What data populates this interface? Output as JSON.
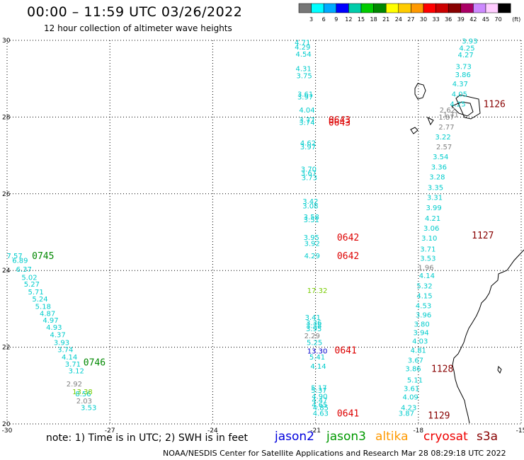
{
  "header": {
    "title": "00:00 – 11:59 UTC 03/26/2022",
    "subtitle": "12 hour collection of altimeter wave heights"
  },
  "colorbar": {
    "labels": [
      "3",
      "6",
      "9",
      "12",
      "15",
      "18",
      "21",
      "24",
      "27",
      "30",
      "33",
      "36",
      "39",
      "42",
      "45",
      "70"
    ],
    "unit": "(ft)",
    "colors": [
      "#777777",
      "#00ffff",
      "#00aaff",
      "#0000ff",
      "#00ccaa",
      "#00cc00",
      "#008800",
      "#ffff00",
      "#ffcc00",
      "#ff9900",
      "#ff0000",
      "#cc0000",
      "#880000",
      "#aa0066",
      "#cc88ff",
      "#ffccff",
      "#000000"
    ]
  },
  "footer": {
    "note": "note: 1) Time is in UTC; 2) SWH is in feet",
    "credit": "NOAA/NESDIS Center for Satellite Applications and Research   Mar 28 08:29:18 UTC 2022",
    "satellites": [
      {
        "name": "jason2",
        "color": "#0000dd"
      },
      {
        "name": "jason3",
        "color": "#009900"
      },
      {
        "name": "altika",
        "color": "#ff9900"
      },
      {
        "name": "cryosat",
        "color": "#ee0000"
      },
      {
        "name": "s3a",
        "color": "#880000"
      }
    ]
  },
  "chart_data": {
    "type": "scatter",
    "xlim": [
      -30,
      -15
    ],
    "ylim": [
      20,
      30
    ],
    "x_ticks": [
      "-30",
      "-27",
      "-24",
      "-21",
      "-18",
      "-15"
    ],
    "y_ticks": [
      "20",
      "22",
      "24",
      "26",
      "28",
      "30"
    ],
    "grid": true,
    "tracks": [
      {
        "color": "#00cccc",
        "points": [
          {
            "lon": -29.78,
            "lat": 24.39,
            "v": "7.57"
          },
          {
            "lon": -29.62,
            "lat": 24.27,
            "v": "6.89"
          },
          {
            "lon": -29.51,
            "lat": 24.04,
            "v": "6.37"
          },
          {
            "lon": -29.35,
            "lat": 23.83,
            "v": "5.02"
          },
          {
            "lon": -29.28,
            "lat": 23.65,
            "v": "5.27"
          },
          {
            "lon": -29.16,
            "lat": 23.45,
            "v": "5.71"
          },
          {
            "lon": -29.04,
            "lat": 23.27,
            "v": "5.24"
          },
          {
            "lon": -28.95,
            "lat": 23.07,
            "v": "5.18"
          },
          {
            "lon": -28.82,
            "lat": 22.89,
            "v": "4.87"
          },
          {
            "lon": -28.73,
            "lat": 22.71,
            "v": "4.97"
          },
          {
            "lon": -28.63,
            "lat": 22.53,
            "v": "4.93"
          },
          {
            "lon": -28.52,
            "lat": 22.33,
            "v": "4.37"
          },
          {
            "lon": -28.41,
            "lat": 22.13,
            "v": "3.93"
          },
          {
            "lon": -28.3,
            "lat": 21.95,
            "v": "3.74"
          },
          {
            "lon": -28.18,
            "lat": 21.75,
            "v": "4.14"
          },
          {
            "lon": -28.08,
            "lat": 21.57,
            "v": "3.71"
          },
          {
            "lon": -27.98,
            "lat": 21.39,
            "v": "3.12"
          },
          {
            "lon": -27.78,
            "lat": 20.79,
            "v": "8.56"
          },
          {
            "lon": -27.62,
            "lat": 20.43,
            "v": "3.53"
          },
          {
            "lon": -21.38,
            "lat": 29.95,
            "v": "4.71"
          },
          {
            "lon": -21.38,
            "lat": 29.83,
            "v": "4.29"
          },
          {
            "lon": -21.35,
            "lat": 29.65,
            "v": "4.54"
          },
          {
            "lon": -21.35,
            "lat": 29.27,
            "v": "4.31"
          },
          {
            "lon": -21.33,
            "lat": 29.09,
            "v": "3.75"
          },
          {
            "lon": -21.3,
            "lat": 28.61,
            "v": "3.61"
          },
          {
            "lon": -21.3,
            "lat": 28.53,
            "v": "3.97"
          },
          {
            "lon": -21.25,
            "lat": 28.19,
            "v": "4.04"
          },
          {
            "lon": -21.25,
            "lat": 27.93,
            "v": "3.77"
          },
          {
            "lon": -21.25,
            "lat": 27.87,
            "v": "3.74"
          },
          {
            "lon": -21.22,
            "lat": 27.33,
            "v": "4.62"
          },
          {
            "lon": -21.22,
            "lat": 27.23,
            "v": "3.97"
          },
          {
            "lon": -21.2,
            "lat": 26.65,
            "v": "3.70"
          },
          {
            "lon": -21.2,
            "lat": 26.55,
            "v": "3.67"
          },
          {
            "lon": -21.18,
            "lat": 26.43,
            "v": "3.73"
          },
          {
            "lon": -21.15,
            "lat": 25.81,
            "v": "3.42"
          },
          {
            "lon": -21.15,
            "lat": 25.69,
            "v": "3.08"
          },
          {
            "lon": -21.12,
            "lat": 25.41,
            "v": "3.58"
          },
          {
            "lon": -21.12,
            "lat": 25.33,
            "v": "3.51"
          },
          {
            "lon": -21.12,
            "lat": 24.87,
            "v": "3.95"
          },
          {
            "lon": -21.1,
            "lat": 24.71,
            "v": "3.92"
          },
          {
            "lon": -21.1,
            "lat": 24.39,
            "v": "4.29"
          },
          {
            "lon": -21.08,
            "lat": 22.79,
            "v": "3.41"
          },
          {
            "lon": -21.05,
            "lat": 22.65,
            "v": "3.36"
          },
          {
            "lon": -21.05,
            "lat": 22.57,
            "v": "3.38"
          },
          {
            "lon": -21.05,
            "lat": 22.49,
            "v": "3.95"
          },
          {
            "lon": -21.03,
            "lat": 22.13,
            "v": "5.25"
          },
          {
            "lon": -20.95,
            "lat": 21.75,
            "v": "5.41"
          },
          {
            "lon": -20.92,
            "lat": 21.51,
            "v": "4.14"
          },
          {
            "lon": -20.9,
            "lat": 20.95,
            "v": "5.17"
          },
          {
            "lon": -20.9,
            "lat": 20.89,
            "v": "5.37"
          },
          {
            "lon": -20.88,
            "lat": 20.73,
            "v": "4.90"
          },
          {
            "lon": -20.88,
            "lat": 20.63,
            "v": "4.47"
          },
          {
            "lon": -20.88,
            "lat": 20.51,
            "v": "4.65"
          },
          {
            "lon": -20.85,
            "lat": 20.43,
            "v": "4.85"
          },
          {
            "lon": -20.85,
            "lat": 20.29,
            "v": "4.63"
          },
          {
            "lon": -18.35,
            "lat": 20.29,
            "v": "3.87"
          },
          {
            "lon": -18.28,
            "lat": 20.43,
            "v": "4.23"
          },
          {
            "lon": -18.23,
            "lat": 20.71,
            "v": "4.09"
          },
          {
            "lon": -18.2,
            "lat": 20.93,
            "v": "3.61"
          },
          {
            "lon": -18.1,
            "lat": 21.15,
            "v": "5.11"
          },
          {
            "lon": -18.15,
            "lat": 21.45,
            "v": "3.86"
          },
          {
            "lon": -18.08,
            "lat": 21.67,
            "v": "3.67"
          },
          {
            "lon": -18.0,
            "lat": 21.93,
            "v": "4.81"
          },
          {
            "lon": -17.95,
            "lat": 22.17,
            "v": "4.03"
          },
          {
            "lon": -17.92,
            "lat": 22.39,
            "v": "3.94"
          },
          {
            "lon": -17.9,
            "lat": 22.61,
            "v": "3.80"
          },
          {
            "lon": -17.85,
            "lat": 22.85,
            "v": "3.96"
          },
          {
            "lon": -17.85,
            "lat": 23.09,
            "v": "4.53"
          },
          {
            "lon": -17.82,
            "lat": 23.35,
            "v": "4.15"
          },
          {
            "lon": -17.82,
            "lat": 23.61,
            "v": "5.32"
          },
          {
            "lon": -17.75,
            "lat": 23.87,
            "v": "4.14"
          },
          {
            "lon": -17.72,
            "lat": 24.33,
            "v": "3.53"
          },
          {
            "lon": -17.72,
            "lat": 24.57,
            "v": "3.71"
          },
          {
            "lon": -17.68,
            "lat": 24.85,
            "v": "3.10"
          },
          {
            "lon": -17.62,
            "lat": 25.11,
            "v": "3.06"
          },
          {
            "lon": -17.58,
            "lat": 25.37,
            "v": "4.21"
          },
          {
            "lon": -17.55,
            "lat": 25.65,
            "v": "3.99"
          },
          {
            "lon": -17.52,
            "lat": 25.91,
            "v": "3.31"
          },
          {
            "lon": -17.5,
            "lat": 26.17,
            "v": "3.35"
          },
          {
            "lon": -17.45,
            "lat": 26.45,
            "v": "3.28"
          },
          {
            "lon": -17.4,
            "lat": 26.71,
            "v": "3.36"
          },
          {
            "lon": -17.35,
            "lat": 26.97,
            "v": "3.54"
          },
          {
            "lon": -17.28,
            "lat": 27.49,
            "v": "3.22"
          },
          {
            "lon": -16.85,
            "lat": 28.35,
            "v": "4.25"
          },
          {
            "lon": -16.8,
            "lat": 28.61,
            "v": "4.05"
          },
          {
            "lon": -16.78,
            "lat": 28.87,
            "v": "4.37"
          },
          {
            "lon": -16.7,
            "lat": 29.11,
            "v": "3.86"
          },
          {
            "lon": -16.68,
            "lat": 29.33,
            "v": "3.73"
          },
          {
            "lon": -16.62,
            "lat": 29.63,
            "v": "4.27"
          },
          {
            "lon": -16.58,
            "lat": 29.81,
            "v": "4.25"
          },
          {
            "lon": -16.5,
            "lat": 29.99,
            "v": "3.93"
          }
        ]
      },
      {
        "color": "#808080",
        "points": [
          {
            "lon": -28.04,
            "lat": 21.05,
            "v": "2.92"
          },
          {
            "lon": -27.75,
            "lat": 20.61,
            "v": "2.03"
          },
          {
            "lon": -21.1,
            "lat": 22.31,
            "v": "2.29"
          },
          {
            "lon": -17.78,
            "lat": 24.09,
            "v": "1.96"
          },
          {
            "lon": -17.25,
            "lat": 27.23,
            "v": "2.57"
          },
          {
            "lon": -17.18,
            "lat": 27.75,
            "v": "2.77"
          },
          {
            "lon": -17.18,
            "lat": 28.01,
            "v": "1.87"
          },
          {
            "lon": -17.15,
            "lat": 28.19,
            "v": "2.62"
          },
          {
            "lon": -17.05,
            "lat": 28.07,
            "v": "1.71"
          }
        ]
      },
      {
        "color": "#77cc00",
        "points": [
          {
            "lon": -27.8,
            "lat": 20.85,
            "v": "13.38"
          },
          {
            "lon": -20.95,
            "lat": 23.49,
            "v": "17.32"
          }
        ]
      },
      {
        "color": "#0000cc",
        "points": [
          {
            "lon": -20.95,
            "lat": 21.91,
            "v": "13.30"
          }
        ]
      }
    ],
    "passes": [
      {
        "label": "0745",
        "lon": -28.95,
        "lat": 24.39,
        "color": "#008800"
      },
      {
        "label": "0746",
        "lon": -27.45,
        "lat": 21.61,
        "color": "#008800"
      },
      {
        "label": "0643",
        "lon": -20.3,
        "lat": 27.93,
        "color": "#dd0000"
      },
      {
        "label": "0643",
        "lon": -20.3,
        "lat": 27.87,
        "color": "#dd0000"
      },
      {
        "label": "0642",
        "lon": -20.05,
        "lat": 24.87,
        "color": "#dd0000"
      },
      {
        "label": "0642",
        "lon": -20.05,
        "lat": 24.39,
        "color": "#dd0000"
      },
      {
        "label": "0641",
        "lon": -20.12,
        "lat": 21.93,
        "color": "#dd0000"
      },
      {
        "label": "0641",
        "lon": -20.05,
        "lat": 20.29,
        "color": "#dd0000"
      },
      {
        "label": "1126",
        "lon": -15.78,
        "lat": 28.35,
        "color": "#880000"
      },
      {
        "label": "1127",
        "lon": -16.12,
        "lat": 24.93,
        "color": "#880000"
      },
      {
        "label": "1128",
        "lon": -17.3,
        "lat": 21.45,
        "color": "#880000"
      },
      {
        "label": "1129",
        "lon": -17.4,
        "lat": 20.23,
        "color": "#880000"
      }
    ]
  }
}
